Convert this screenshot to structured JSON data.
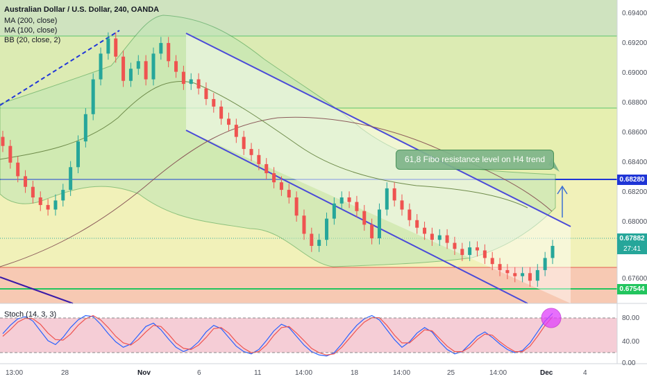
{
  "header": {
    "title": "Australian Dollar / U.S. Dollar, 240, OANDA",
    "ma200": "MA (200, close)",
    "ma100": "MA (100, close)",
    "bb": "BB (20, close, 2)"
  },
  "stoch": {
    "label": "Stoch (14, 3, 3)",
    "ticks": [
      "80.00",
      "40.00",
      "0.00"
    ]
  },
  "annotation": {
    "text": "61,8 Fibo resistance level on H4 trend"
  },
  "colors": {
    "channel": "#4a4ad8",
    "resistance_line": "#1f35d6",
    "bull": "#26a69a",
    "bear": "#ef5350",
    "support_green": "#22c55e",
    "pink_zone": "#f7c9b3",
    "bb_fill": "#bfe6b4",
    "stoch_bg": "#f5cdd6",
    "stoch_k": "#2962ff",
    "stoch_d": "#ef5350",
    "marker": "#e040fb"
  },
  "chart_data": {
    "type": "candlestick",
    "title": "Australian Dollar / U.S. Dollar, 240, OANDA",
    "ylim": [
      0.675,
      0.6944
    ],
    "y_ticks": [
      "0.69400",
      "0.69200",
      "0.69000",
      "0.68800",
      "0.68600",
      "0.68400",
      "0.68200",
      "0.68000",
      "0.67600"
    ],
    "x_ticks": [
      "13:00",
      "28",
      "Nov",
      "6",
      "11",
      "14:00",
      "18",
      "14:00",
      "25",
      "14:00",
      "Dec",
      "4"
    ],
    "levels": {
      "resistance": {
        "value": 0.6828,
        "label": "0.68280"
      },
      "last_price": {
        "value": 0.67882,
        "label": "0.67882"
      },
      "support": {
        "value": 0.67544,
        "label": "0.67544"
      },
      "countdown": "27:41"
    },
    "close_series": [
      0.6854,
      0.6843,
      0.6834,
      0.6827,
      0.682,
      0.6815,
      0.6812,
      0.6818,
      0.6825,
      0.684,
      0.6857,
      0.6875,
      0.6898,
      0.6915,
      0.6925,
      0.6913,
      0.6897,
      0.6905,
      0.691,
      0.6898,
      0.6915,
      0.6922,
      0.691,
      0.6903,
      0.6895,
      0.6898,
      0.6892,
      0.6885,
      0.688,
      0.6872,
      0.6868,
      0.686,
      0.6852,
      0.6848,
      0.6842,
      0.6836,
      0.683,
      0.6825,
      0.682,
      0.6808,
      0.6796,
      0.6788,
      0.6792,
      0.6806,
      0.6816,
      0.682,
      0.6817,
      0.6811,
      0.6802,
      0.6793,
      0.6812,
      0.6826,
      0.6818,
      0.6812,
      0.6805,
      0.68,
      0.6796,
      0.6792,
      0.6795,
      0.679,
      0.6786,
      0.6782,
      0.6787,
      0.6785,
      0.678,
      0.6776,
      0.6772,
      0.677,
      0.6768,
      0.677,
      0.6765,
      0.6772,
      0.678,
      0.6788
    ],
    "stoch_k": [
      55,
      70,
      82,
      86,
      78,
      60,
      42,
      35,
      48,
      66,
      80,
      88,
      86,
      72,
      55,
      40,
      30,
      36,
      52,
      68,
      74,
      62,
      45,
      30,
      22,
      28,
      40,
      58,
      70,
      64,
      48,
      32,
      22,
      18,
      26,
      42,
      60,
      72,
      66,
      50,
      34,
      22,
      16,
      14,
      20,
      36,
      54,
      70,
      82,
      88,
      80,
      62,
      44,
      30,
      40,
      56,
      66,
      58,
      40,
      26,
      18,
      22,
      36,
      50,
      58,
      48,
      36,
      26,
      20,
      24,
      38,
      58,
      78,
      92
    ],
    "stoch_d": [
      50,
      62,
      76,
      83,
      82,
      72,
      56,
      44,
      43,
      54,
      70,
      82,
      88,
      80,
      66,
      50,
      38,
      34,
      44,
      58,
      70,
      68,
      54,
      38,
      28,
      26,
      34,
      48,
      64,
      66,
      56,
      40,
      28,
      20,
      22,
      34,
      52,
      66,
      68,
      56,
      42,
      28,
      20,
      16,
      18,
      30,
      46,
      62,
      76,
      84,
      84,
      70,
      52,
      38,
      38,
      50,
      62,
      60,
      46,
      32,
      22,
      22,
      30,
      44,
      54,
      52,
      40,
      30,
      22,
      22,
      32,
      50,
      70,
      86
    ]
  }
}
